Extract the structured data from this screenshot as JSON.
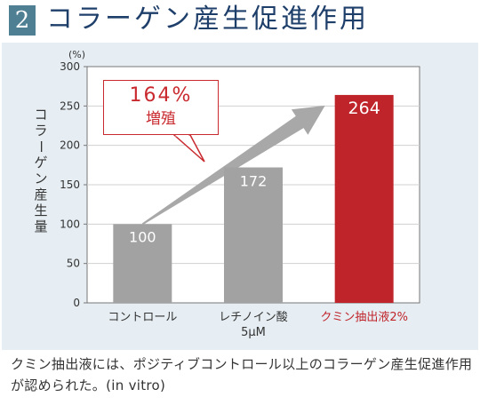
{
  "header": {
    "number": "2",
    "title": "コラーゲン産生促進作用"
  },
  "callout": {
    "value": "164%",
    "label": "増殖"
  },
  "caption": "クミン抽出液には、ポジティブコントロール以上のコラーゲン産生促進作用が認められた。(in vitro)",
  "colors": {
    "header_box": "#4f7f93",
    "title": "#1f3f6b",
    "panel": "#e6eef3",
    "bar_gray": "#a2a2a2",
    "bar_red": "#c0242b",
    "highlight_label": "#c0242b",
    "arrow": "#a8a8a8"
  },
  "chart_data": {
    "type": "bar",
    "ylabel": "コラーゲン産生量",
    "yunit": "(%)",
    "ylim": [
      0,
      300
    ],
    "yticks": [
      0,
      50,
      100,
      150,
      200,
      250,
      300
    ],
    "grid": true,
    "categories": [
      "コントロール",
      "レチノイン酸 5μM",
      "クミン抽出液2%"
    ],
    "category_lines": [
      [
        "コントロール"
      ],
      [
        "レチノイン酸",
        "5μM"
      ],
      [
        "クミン抽出液2%"
      ]
    ],
    "values": [
      100,
      172,
      264
    ],
    "value_labels": [
      "100",
      "172",
      "264"
    ],
    "highlight_index": 2
  }
}
